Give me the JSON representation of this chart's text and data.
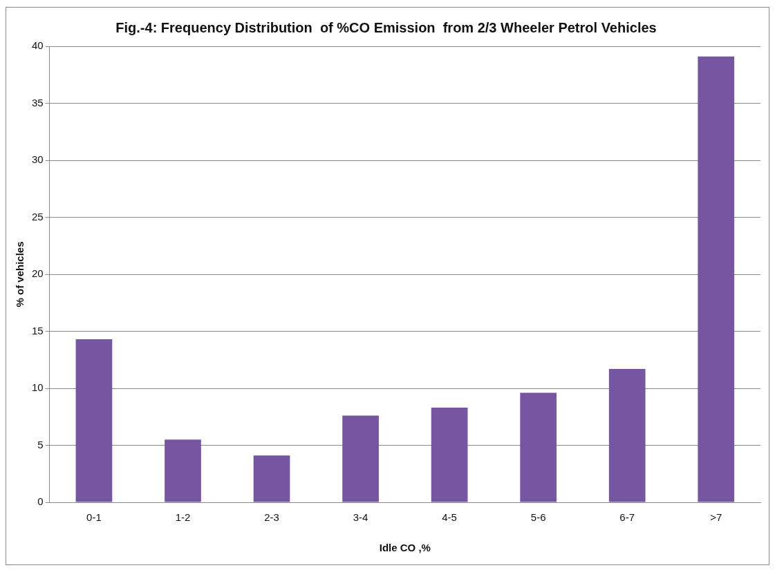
{
  "chart_data": {
    "type": "bar",
    "title": "Fig.-4: Frequency Distribution  of %CO Emission  from 2/3 Wheeler Petrol Vehicles",
    "xlabel": "Idle CO ,%",
    "ylabel": "% of vehicles",
    "categories": [
      "0-1",
      "1-2",
      "2-3",
      "3-4",
      "4-5",
      "5-6",
      "6-7",
      ">7"
    ],
    "values": [
      14.3,
      5.5,
      4.1,
      7.6,
      8.3,
      9.6,
      11.7,
      39.1
    ],
    "color": "#7656a0",
    "ylim": [
      0,
      40
    ],
    "yticks": [
      0,
      5,
      10,
      15,
      20,
      25,
      30,
      35,
      40
    ],
    "grid": "y",
    "legend": false
  }
}
